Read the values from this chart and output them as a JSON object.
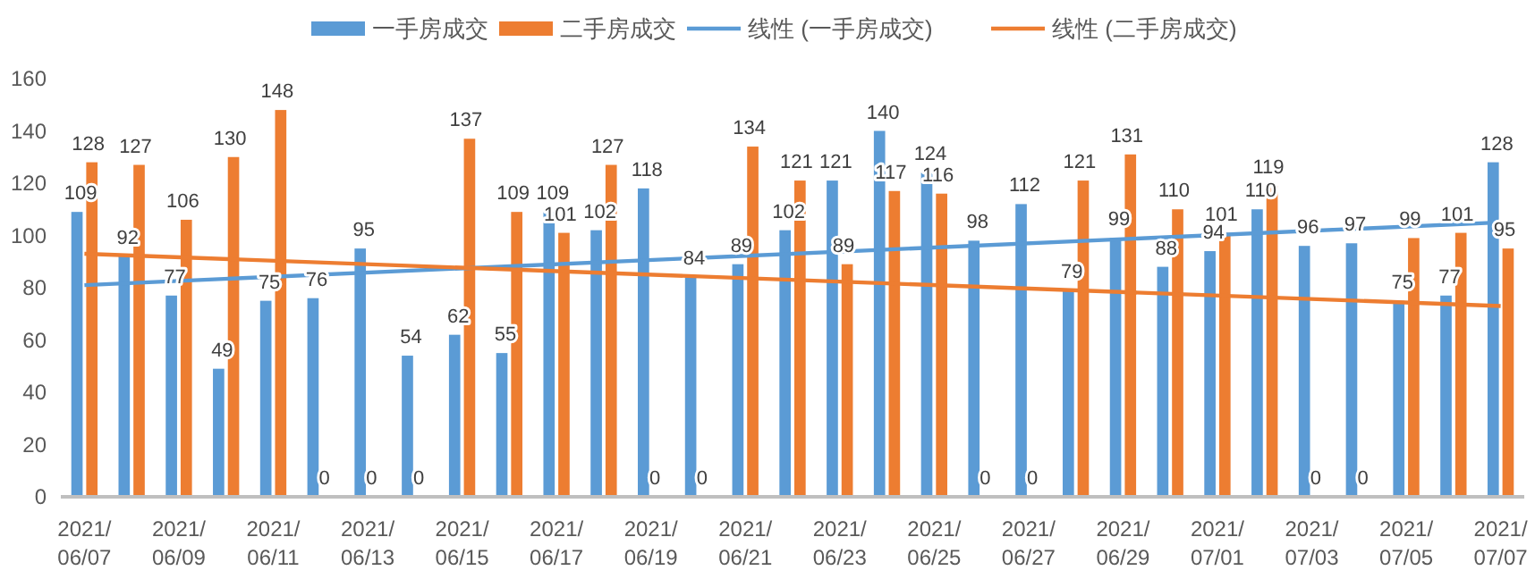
{
  "chart_data": {
    "type": "bar",
    "categories": [
      "2021/06/07",
      null,
      "2021/06/09",
      null,
      "2021/06/11",
      null,
      "2021/06/13",
      null,
      "2021/06/15",
      null,
      "2021/06/17",
      null,
      "2021/06/19",
      null,
      "2021/06/21",
      null,
      "2021/06/23",
      null,
      "2021/06/25",
      null,
      "2021/06/27",
      null,
      "2021/06/29",
      null,
      "2021/07/01",
      null,
      "2021/07/03",
      null,
      "2021/07/05",
      null,
      "2021/07/07"
    ],
    "series": [
      {
        "name": "一手房成交",
        "color": "#5b9bd5",
        "values": [
          109,
          92,
          77,
          49,
          75,
          76,
          95,
          54,
          62,
          55,
          109,
          102,
          118,
          84,
          89,
          102,
          121,
          140,
          124,
          98,
          112,
          79,
          99,
          88,
          94,
          110,
          96,
          97,
          75,
          77,
          128
        ],
        "value_labels": [
          "109",
          "92",
          "77",
          "49",
          "75",
          "76",
          "95",
          "54",
          "62",
          "55",
          "109",
          "102",
          "118",
          "84",
          "89",
          "102",
          "121",
          "140",
          "124",
          "98",
          "112",
          "79",
          "99",
          "88",
          "94",
          "110",
          "96",
          "97",
          "75",
          "77",
          "128"
        ]
      },
      {
        "name": "二手房成交",
        "color": "#ed7d31",
        "values": [
          128,
          127,
          106,
          130,
          148,
          0,
          0,
          0,
          137,
          109,
          101,
          127,
          0,
          0,
          134,
          121,
          89,
          117,
          116,
          0,
          0,
          121,
          131,
          110,
          101,
          119,
          0,
          0,
          99,
          101,
          95
        ],
        "value_labels": [
          "128",
          "127",
          "106",
          "130",
          "148",
          "0",
          "0",
          "0",
          "137",
          "109",
          "101",
          "127",
          "0",
          "0",
          "134",
          "121",
          "89",
          "117",
          "116",
          "0",
          "0",
          "121",
          "131",
          "110",
          "101",
          "119",
          "0",
          "0",
          "99",
          "101",
          "95"
        ]
      },
      {
        "name": "线性 (一手房成交)",
        "type": "line",
        "color": "#5b9bd5",
        "x": [
          "2021/06/07",
          "2021/07/07"
        ],
        "values": [
          81,
          105
        ]
      },
      {
        "name": "线性 (二手房成交)",
        "type": "line",
        "color": "#ed7d31",
        "x": [
          "2021/06/07",
          "2021/07/07"
        ],
        "values": [
          93,
          73
        ]
      }
    ],
    "ylim": [
      0,
      160
    ],
    "yticks": [
      0,
      20,
      40,
      60,
      80,
      100,
      120,
      140,
      160
    ],
    "legend": "top",
    "grid": false
  }
}
